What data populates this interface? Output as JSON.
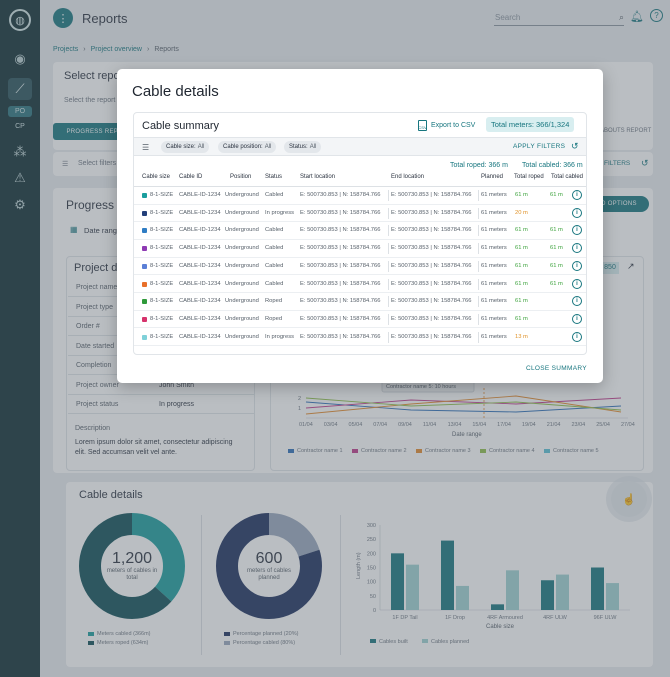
{
  "sidebar": {
    "items": [
      {
        "icon": "globe-icon",
        "glyph": "◉"
      },
      {
        "icon": "trend-icon",
        "glyph": "⟋"
      },
      {
        "label": "PO"
      },
      {
        "label": "CP"
      },
      {
        "icon": "network-icon",
        "glyph": "⁂"
      },
      {
        "icon": "alert-icon",
        "glyph": "⚠"
      },
      {
        "icon": "gear-icon",
        "glyph": "⚙"
      }
    ]
  },
  "header": {
    "title": "Reports",
    "search_placeholder": "Search",
    "help_glyph": "?"
  },
  "breadcrumb": [
    "Projects",
    "Project overview",
    "Reports"
  ],
  "background": {
    "select_report_title": "Select report",
    "select_report_sub": "Select the report",
    "progress_report_button": "PROGRESS REPORT",
    "about_report_tab": "ABOUTS REPORT",
    "select_filters": "Select filters",
    "filters_button": "FILTERS",
    "progress_title": "Progress report",
    "date_range": "Date range",
    "options_button": "ADD OPTIONS",
    "project_details_title": "Project details",
    "project_id_badge": "850",
    "project_rows": [
      {
        "key": "Project name",
        "value": ""
      },
      {
        "key": "Project type",
        "value": ""
      },
      {
        "key": "Order #",
        "value": ""
      },
      {
        "key": "Date started",
        "value": ""
      },
      {
        "key": "Completion",
        "value": ""
      },
      {
        "key": "Project owner",
        "value": "John Smith"
      },
      {
        "key": "Project status",
        "value": "In progress"
      }
    ],
    "description_label": "Description",
    "description_text": "Lorem ipsum dolor sit amet, consectetur adipiscing elit. Sed accumsan velit vel ante.",
    "line_chart": {
      "tooltip": "Contractor name 5: 10 hours",
      "x_ticks": [
        "01/04",
        "03/04",
        "05/04",
        "07/04",
        "09/04",
        "11/04",
        "13/04",
        "15/04",
        "17/04",
        "19/04",
        "21/04",
        "23/04",
        "25/04",
        "27/04"
      ],
      "y_ticks": [
        "2",
        "1"
      ],
      "xlabel": "Date range",
      "legend": [
        {
          "name": "Contractor name 1",
          "color": "#2e6fb8"
        },
        {
          "name": "Contractor name 2",
          "color": "#c0398b"
        },
        {
          "name": "Contractor name 3",
          "color": "#e58a2c"
        },
        {
          "name": "Contractor name 4",
          "color": "#8fbf4a"
        },
        {
          "name": "Contractor name 5",
          "color": "#5bc2d6"
        }
      ]
    },
    "cable_details_title": "Cable details",
    "donut1": {
      "value": "1,200",
      "caption": "meters of cables in total",
      "legend": [
        "Meters cabled (366m)",
        "Meters roped (634m)"
      ]
    },
    "donut2": {
      "value": "600",
      "caption": "meters of cables planned",
      "legend": [
        "Percentage planned (20%)",
        "Percentage cabled (80%)"
      ]
    },
    "bar_chart": {
      "type": "bar",
      "categories": [
        "1F DP Tail",
        "1F Drop",
        "4RF Armoured",
        "4RF ULW",
        "96F ULW"
      ],
      "series": [
        {
          "name": "Cables built",
          "values": [
            200,
            245,
            20,
            105,
            150
          ]
        },
        {
          "name": "Cables planned",
          "values": [
            160,
            85,
            140,
            125,
            95
          ]
        }
      ],
      "ylabel": "Length (m)",
      "xlabel": "Cable size",
      "ylim": [
        0,
        300
      ],
      "y_ticks": [
        "300",
        "250",
        "200",
        "150",
        "100",
        "50",
        "0"
      ]
    }
  },
  "modal": {
    "title": "Cable details",
    "summary_title": "Cable summary",
    "export_label": "Export to CSV",
    "csv_glyph": "CSV",
    "total_meters": "Total meters: 366/1,324",
    "filters": [
      {
        "label": "Cable size:",
        "value": "All"
      },
      {
        "label": "Cable position:",
        "value": "All"
      },
      {
        "label": "Status:",
        "value": "All"
      }
    ],
    "apply_filters": "APPLY FILTERS",
    "total_roped": "Total roped: 366 m",
    "total_cabled": "Total cabled: 366 m",
    "columns": [
      "Cable size",
      "Cable ID",
      "Position",
      "Status",
      "Start location",
      "End location",
      "Planned",
      "Total roped",
      "Total cabled"
    ],
    "rows": [
      {
        "color": "#1a9e9e",
        "size": "8-1-SIZE",
        "id": "CABLE-ID-1234",
        "position": "Underground",
        "status": "Cabled",
        "start": "E: 500730.853 | N: 158784.766",
        "end": "E: 500730.853 | N: 158784.766",
        "planned": "61 meters",
        "roped": "61 m",
        "roped_color": "green",
        "cabled": "61 m"
      },
      {
        "color": "#24407a",
        "size": "8-1-SIZE",
        "id": "CABLE-ID-1234",
        "position": "Underground",
        "status": "In progress",
        "start": "E: 500730.853 | N: 158784.766",
        "end": "E: 500730.853 | N: 158784.766",
        "planned": "61 meters",
        "roped": "20 m",
        "roped_color": "orange",
        "cabled": ""
      },
      {
        "color": "#2f7dc4",
        "size": "8-1-SIZE",
        "id": "CABLE-ID-1234",
        "position": "Underground",
        "status": "Cabled",
        "start": "E: 500730.853 | N: 158784.766",
        "end": "E: 500730.853 | N: 158784.766",
        "planned": "61 meters",
        "roped": "61 m",
        "roped_color": "green",
        "cabled": "61 m"
      },
      {
        "color": "#8e3ab3",
        "size": "8-1-SIZE",
        "id": "CABLE-ID-1234",
        "position": "Underground",
        "status": "Cabled",
        "start": "E: 500730.853 | N: 158784.766",
        "end": "E: 500730.853 | N: 158784.766",
        "planned": "61 meters",
        "roped": "61 m",
        "roped_color": "green",
        "cabled": "61 m"
      },
      {
        "color": "#5b7fd6",
        "size": "8-1-SIZE",
        "id": "CABLE-ID-1234",
        "position": "Underground",
        "status": "Cabled",
        "start": "E: 500730.853 | N: 158784.766",
        "end": "E: 500730.853 | N: 158784.766",
        "planned": "61 meters",
        "roped": "61 m",
        "roped_color": "green",
        "cabled": "61 m"
      },
      {
        "color": "#e8702a",
        "size": "8-1-SIZE",
        "id": "CABLE-ID-1234",
        "position": "Underground",
        "status": "Cabled",
        "start": "E: 500730.853 | N: 158784.766",
        "end": "E: 500730.853 | N: 158784.766",
        "planned": "61 meters",
        "roped": "61 m",
        "roped_color": "green",
        "cabled": "61 m"
      },
      {
        "color": "#2f9a3a",
        "size": "8-1-SIZE",
        "id": "CABLE-ID-1234",
        "position": "Underground",
        "status": "Roped",
        "start": "E: 500730.853 | N: 158784.766",
        "end": "E: 500730.853 | N: 158784.766",
        "planned": "61 meters",
        "roped": "61 m",
        "roped_color": "green",
        "cabled": ""
      },
      {
        "color": "#d6336c",
        "size": "8-1-SIZE",
        "id": "CABLE-ID-1234",
        "position": "Underground",
        "status": "Roped",
        "start": "E: 500730.853 | N: 158784.766",
        "end": "E: 500730.853 | N: 158784.766",
        "planned": "61 meters",
        "roped": "61 m",
        "roped_color": "green",
        "cabled": ""
      },
      {
        "color": "#7fd1d9",
        "size": "8-1-SIZE",
        "id": "CABLE-ID-1234",
        "position": "Underground",
        "status": "In progress",
        "start": "E: 500730.853 | N: 158784.766",
        "end": "E: 500730.853 | N: 158784.766",
        "planned": "61 meters",
        "roped": "13 m",
        "roped_color": "orange",
        "cabled": ""
      }
    ],
    "close_summary": "CLOSE SUMMARY"
  }
}
